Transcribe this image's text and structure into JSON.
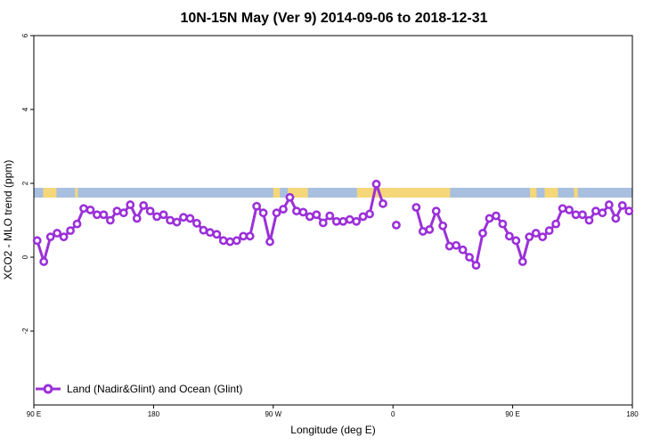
{
  "chart_data": {
    "type": "line",
    "title": "10N-15N May (Ver 9)   2014-09-06 to 2018-12-31",
    "xlabel": "Longitude (deg E)",
    "ylabel": "XCO2 - MLO trend (ppm)",
    "xlim": [
      90,
      540
    ],
    "ylim": [
      -4,
      6
    ],
    "x_ticks": [
      {
        "value": 90,
        "label": "90 E"
      },
      {
        "value": 180,
        "label": "180"
      },
      {
        "value": 270,
        "label": "90 W"
      },
      {
        "value": 360,
        "label": "0"
      },
      {
        "value": 450,
        "label": "90 E"
      },
      {
        "value": 540,
        "label": "180"
      }
    ],
    "y_ticks": [
      {
        "value": -2,
        "label": "-2"
      },
      {
        "value": 0,
        "label": "0"
      },
      {
        "value": 2,
        "label": "2"
      },
      {
        "value": 4,
        "label": "4"
      },
      {
        "value": 6,
        "label": "6"
      }
    ],
    "grid": false,
    "legend_position": "bottom-left",
    "series": [
      {
        "name": "Land (Nadir&Glint) and Ocean (Glint)",
        "color": "#9b30d9",
        "points": [
          [
            92.5,
            0.45
          ],
          [
            97.5,
            -0.12
          ],
          [
            102.5,
            0.55
          ],
          [
            107.5,
            0.65
          ],
          [
            112.5,
            0.55
          ],
          [
            117.5,
            0.72
          ],
          [
            122.5,
            0.9
          ],
          [
            127.5,
            1.32
          ],
          [
            132.5,
            1.28
          ],
          [
            137.5,
            1.15
          ],
          [
            142.5,
            1.15
          ],
          [
            147.5,
            1.0
          ],
          [
            152.5,
            1.25
          ],
          [
            157.5,
            1.2
          ],
          [
            162.5,
            1.42
          ],
          [
            167.5,
            1.05
          ],
          [
            172.5,
            1.4
          ],
          [
            177.5,
            1.25
          ],
          [
            182.5,
            1.1
          ],
          [
            187.5,
            1.15
          ],
          [
            192.5,
            1.0
          ],
          [
            197.5,
            0.95
          ],
          [
            202.5,
            1.08
          ],
          [
            207.5,
            1.05
          ],
          [
            212.5,
            0.92
          ],
          [
            217.5,
            0.73
          ],
          [
            222.5,
            0.67
          ],
          [
            227.5,
            0.62
          ],
          [
            232.5,
            0.45
          ],
          [
            237.5,
            0.42
          ],
          [
            242.5,
            0.45
          ],
          [
            247.5,
            0.57
          ],
          [
            252.5,
            0.57
          ],
          [
            257.5,
            1.38
          ],
          [
            262.5,
            1.2
          ],
          [
            267.5,
            0.42
          ],
          [
            272.5,
            1.2
          ],
          [
            277.5,
            1.3
          ],
          [
            282.5,
            1.62
          ],
          [
            287.5,
            1.25
          ],
          [
            292.5,
            1.22
          ],
          [
            297.5,
            1.1
          ],
          [
            302.5,
            1.15
          ],
          [
            307.5,
            0.93
          ],
          [
            312.5,
            1.12
          ],
          [
            317.5,
            0.97
          ],
          [
            322.5,
            0.97
          ],
          [
            327.5,
            1.02
          ],
          [
            332.5,
            0.97
          ],
          [
            337.5,
            1.1
          ],
          [
            342.5,
            1.17
          ],
          [
            347.5,
            1.98
          ],
          [
            352.5,
            1.45
          ],
          null,
          [
            362.5,
            0.87
          ],
          null,
          [
            377.5,
            1.35
          ],
          [
            382.5,
            0.7
          ],
          [
            387.5,
            0.75
          ],
          [
            392.5,
            1.25
          ],
          [
            397.5,
            0.85
          ],
          [
            402.5,
            0.3
          ],
          [
            407.5,
            0.32
          ],
          [
            412.5,
            0.2
          ],
          [
            417.5,
            0.0
          ],
          [
            422.5,
            -0.22
          ],
          [
            427.5,
            0.65
          ],
          [
            432.5,
            1.05
          ],
          [
            437.5,
            1.12
          ],
          [
            442.5,
            0.9
          ],
          [
            447.5,
            0.57
          ],
          [
            452.5,
            0.45
          ],
          [
            457.5,
            -0.12
          ],
          [
            462.5,
            0.55
          ],
          [
            467.5,
            0.65
          ],
          [
            472.5,
            0.55
          ],
          [
            477.5,
            0.72
          ],
          [
            482.5,
            0.9
          ],
          [
            487.5,
            1.32
          ],
          [
            492.5,
            1.28
          ],
          [
            497.5,
            1.15
          ],
          [
            502.5,
            1.15
          ],
          [
            507.5,
            1.0
          ],
          [
            512.5,
            1.25
          ],
          [
            517.5,
            1.2
          ],
          [
            522.5,
            1.42
          ],
          [
            527.5,
            1.05
          ],
          [
            532.5,
            1.4
          ],
          [
            537.5,
            1.25
          ]
        ]
      }
    ],
    "land_ocean_band": {
      "ocean_color": "#a8bfe0",
      "land_color": "#f5d77a",
      "land_segments_deg": [
        [
          97,
          107
        ],
        [
          121,
          123
        ],
        [
          270,
          275
        ],
        [
          281,
          296
        ],
        [
          333,
          354
        ],
        [
          354,
          403
        ],
        [
          463,
          468
        ],
        [
          474,
          484
        ],
        [
          496,
          499
        ]
      ]
    }
  }
}
